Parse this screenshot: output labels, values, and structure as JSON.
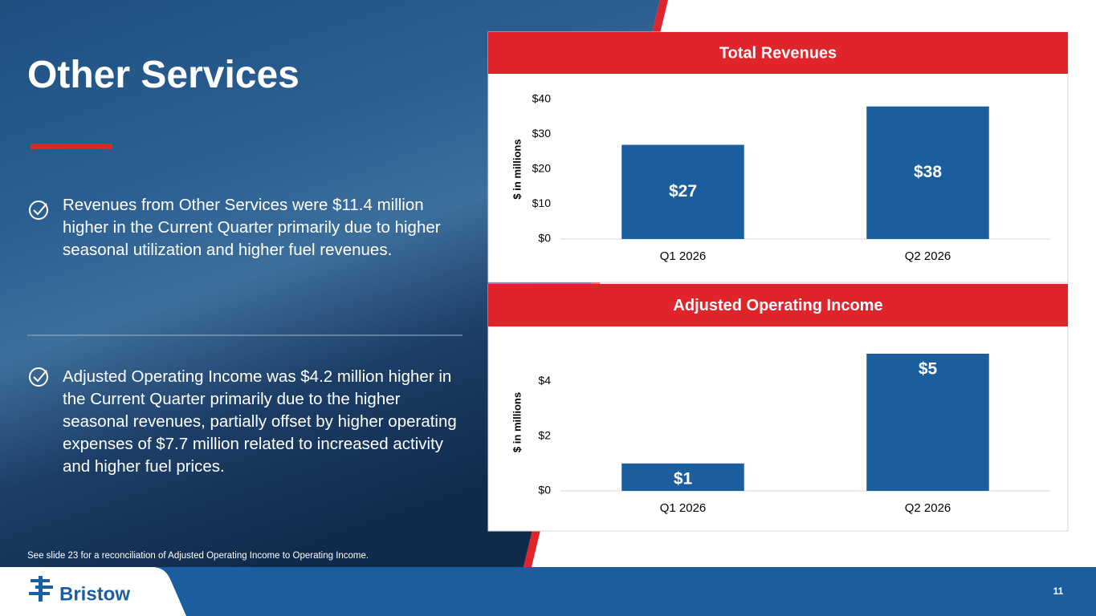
{
  "slide": {
    "title": "Other Services",
    "bullets": [
      "Revenues from Other Services were $11.4 million higher in the Current Quarter primarily due to higher seasonal utilization and higher fuel revenues.",
      "Adjusted Operating Income was $4.2 million higher in the Current Quarter primarily due to the higher seasonal revenues, partially offset by higher operating expenses of $7.7 million related to increased activity and higher fuel prices."
    ],
    "footnote": "See slide 23 for a reconciliation of Adjusted Operating Income to Operating Income.",
    "logo": "Bristow",
    "page_number": "11"
  },
  "chart_data": [
    {
      "type": "bar",
      "title": "Total Revenues",
      "y_label": "$ in millions",
      "categories": [
        "Q1 2026",
        "Q2 2026"
      ],
      "values": [
        27,
        38
      ],
      "value_labels": [
        "$27",
        "$38"
      ],
      "color": "#1b5e9e",
      "ylim": [
        0,
        40
      ],
      "yticks": [
        {
          "value": 0,
          "label": "$0"
        },
        {
          "value": 10,
          "label": "$10"
        },
        {
          "value": 20,
          "label": "$20"
        },
        {
          "value": 30,
          "label": "$30"
        },
        {
          "value": 40,
          "label": "$40"
        }
      ]
    },
    {
      "type": "bar",
      "title": "Adjusted Operating Income",
      "y_label": "$ in millions",
      "categories": [
        "Q1 2026",
        "Q2 2026"
      ],
      "values": [
        1,
        5
      ],
      "value_labels": [
        "$1",
        "$5"
      ],
      "color": "#1b5e9e",
      "ylim": [
        0,
        5
      ],
      "yticks": [
        {
          "value": 0,
          "label": "$0"
        },
        {
          "value": 2,
          "label": "$2"
        },
        {
          "value": 4,
          "label": "$4"
        }
      ]
    }
  ]
}
